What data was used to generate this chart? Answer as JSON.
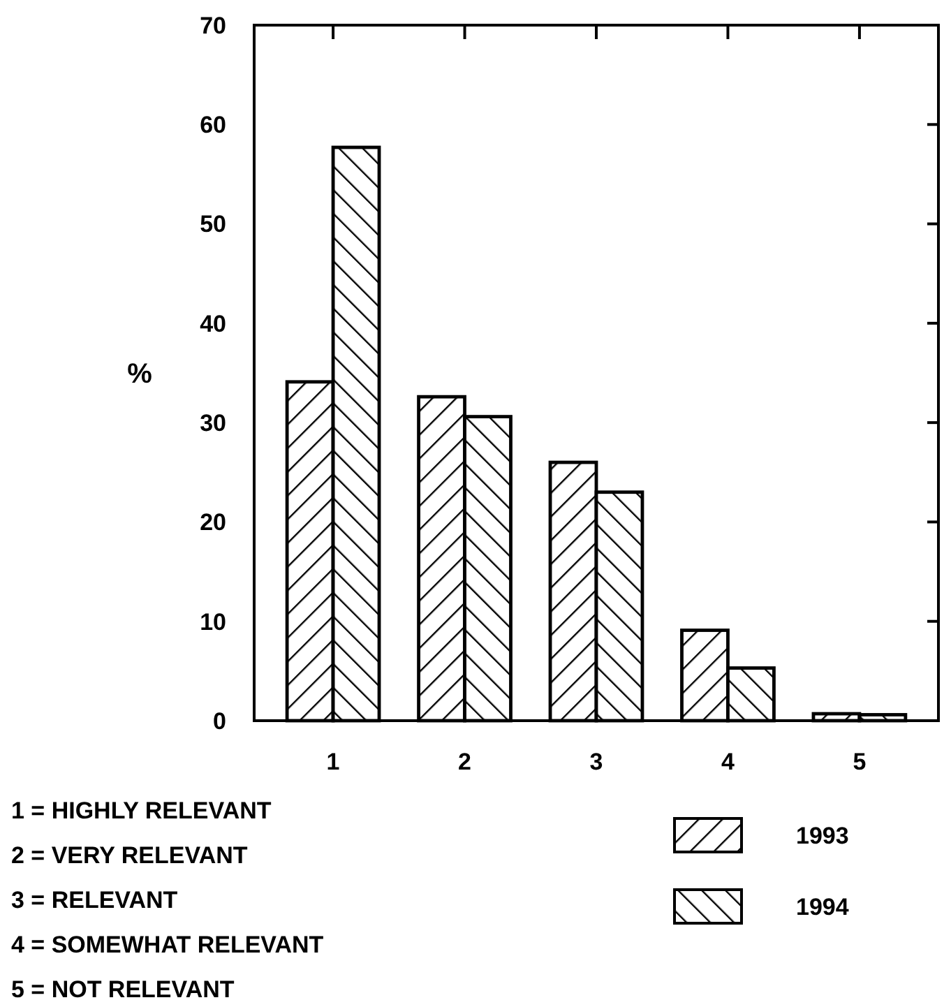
{
  "chart_data": {
    "type": "bar",
    "ylabel": "%",
    "categories": [
      "1",
      "2",
      "3",
      "4",
      "5"
    ],
    "series": [
      {
        "name": "1993",
        "color": "#000000",
        "values": [
          34.1,
          32.6,
          26.0,
          9.1,
          0.7
        ]
      },
      {
        "name": "1994",
        "color": "#000000",
        "values": [
          57.7,
          30.6,
          23.0,
          5.3,
          0.6
        ]
      }
    ],
    "ylim": [
      0,
      70
    ],
    "yticks": [
      0,
      10,
      20,
      30,
      40,
      50,
      60,
      70
    ],
    "grid": false,
    "legend": "bottom right",
    "annotations": [
      "1 = HIGHLY RELEVANT",
      "2 = VERY RELEVANT",
      "3 = RELEVANT",
      "4 = SOMEWHAT RELEVANT",
      "5 = NOT RELEVANT"
    ]
  }
}
